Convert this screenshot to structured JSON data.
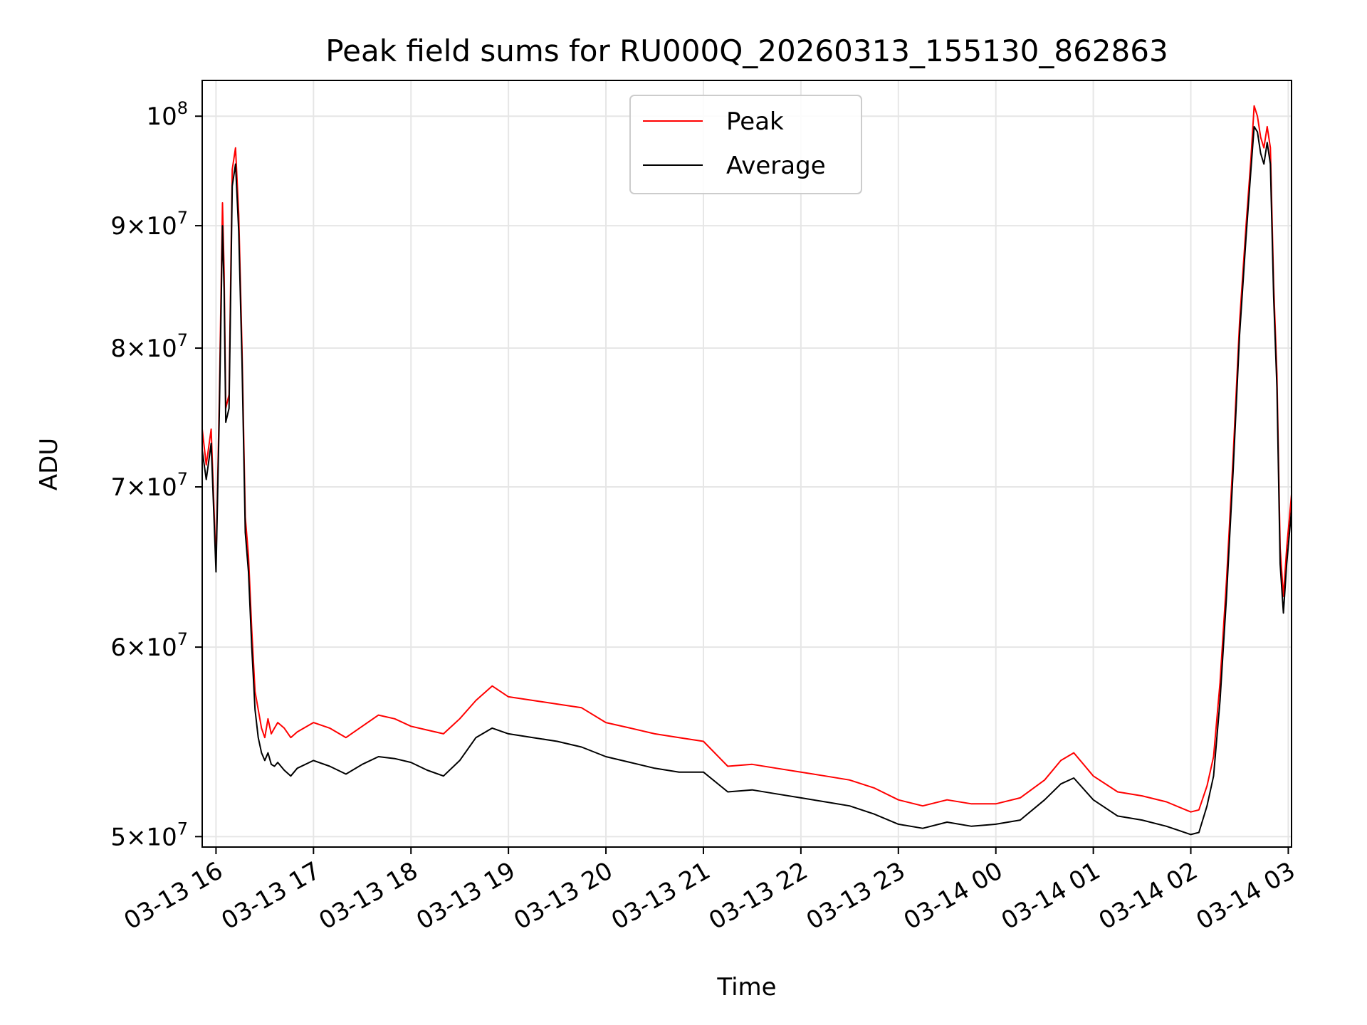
{
  "chart_data": {
    "type": "line",
    "title": "Peak field sums for RU000Q_20260313_155130_862863",
    "xlabel": "Time",
    "ylabel": "ADU",
    "x_type": "datetime",
    "xlim": [
      "2026-03-13T15:51:30",
      "2026-03-14T03:02:00"
    ],
    "ylim": [
      49500000,
      103500000
    ],
    "yscale": "log",
    "grid": true,
    "legend": "upper center",
    "x_ticks": [
      {
        "value": "2026-03-13T16:00",
        "label": "03-13 16"
      },
      {
        "value": "2026-03-13T17:00",
        "label": "03-13 17"
      },
      {
        "value": "2026-03-13T18:00",
        "label": "03-13 18"
      },
      {
        "value": "2026-03-13T19:00",
        "label": "03-13 19"
      },
      {
        "value": "2026-03-13T20:00",
        "label": "03-13 20"
      },
      {
        "value": "2026-03-13T21:00",
        "label": "03-13 21"
      },
      {
        "value": "2026-03-13T22:00",
        "label": "03-13 22"
      },
      {
        "value": "2026-03-13T23:00",
        "label": "03-13 23"
      },
      {
        "value": "2026-03-14T00:00",
        "label": "03-14 00"
      },
      {
        "value": "2026-03-14T01:00",
        "label": "03-14 01"
      },
      {
        "value": "2026-03-14T02:00",
        "label": "03-14 02"
      },
      {
        "value": "2026-03-14T03:00",
        "label": "03-14 03"
      }
    ],
    "y_ticks": [
      {
        "value": 50000000,
        "mantissa": "5",
        "exponent": "7"
      },
      {
        "value": 60000000,
        "mantissa": "6",
        "exponent": "7"
      },
      {
        "value": 70000000,
        "mantissa": "7",
        "exponent": "7"
      },
      {
        "value": 80000000,
        "mantissa": "8",
        "exponent": "7"
      },
      {
        "value": 90000000,
        "mantissa": "9",
        "exponent": "7"
      },
      {
        "value": 100000000,
        "mantissa": "",
        "exponent": "8"
      }
    ],
    "series": [
      {
        "name": "Peak",
        "color": "#ff0000",
        "x": [
          "2026-03-13T15:51:30",
          "2026-03-13T15:54",
          "2026-03-13T15:57",
          "2026-03-13T16:00",
          "2026-03-13T16:02",
          "2026-03-13T16:04",
          "2026-03-13T16:05",
          "2026-03-13T16:06",
          "2026-03-13T16:08",
          "2026-03-13T16:10",
          "2026-03-13T16:12",
          "2026-03-13T16:14",
          "2026-03-13T16:16",
          "2026-03-13T16:18",
          "2026-03-13T16:20",
          "2026-03-13T16:22",
          "2026-03-13T16:24",
          "2026-03-13T16:26",
          "2026-03-13T16:28",
          "2026-03-13T16:30",
          "2026-03-13T16:32",
          "2026-03-13T16:34",
          "2026-03-13T16:36",
          "2026-03-13T16:38",
          "2026-03-13T16:42",
          "2026-03-13T16:46",
          "2026-03-13T16:50",
          "2026-03-13T17:00",
          "2026-03-13T17:10",
          "2026-03-13T17:20",
          "2026-03-13T17:30",
          "2026-03-13T17:40",
          "2026-03-13T17:50",
          "2026-03-13T18:00",
          "2026-03-13T18:10",
          "2026-03-13T18:20",
          "2026-03-13T18:30",
          "2026-03-13T18:40",
          "2026-03-13T18:50",
          "2026-03-13T19:00",
          "2026-03-13T19:15",
          "2026-03-13T19:30",
          "2026-03-13T19:45",
          "2026-03-13T20:00",
          "2026-03-13T20:15",
          "2026-03-13T20:30",
          "2026-03-13T20:45",
          "2026-03-13T21:00",
          "2026-03-13T21:15",
          "2026-03-13T21:30",
          "2026-03-13T21:45",
          "2026-03-13T22:00",
          "2026-03-13T22:15",
          "2026-03-13T22:30",
          "2026-03-13T22:45",
          "2026-03-13T23:00",
          "2026-03-13T23:15",
          "2026-03-13T23:30",
          "2026-03-13T23:45",
          "2026-03-14T00:00",
          "2026-03-14T00:15",
          "2026-03-14T00:30",
          "2026-03-14T00:40",
          "2026-03-14T00:48",
          "2026-03-14T01:00",
          "2026-03-14T01:15",
          "2026-03-14T01:30",
          "2026-03-14T01:45",
          "2026-03-14T02:00",
          "2026-03-14T02:05",
          "2026-03-14T02:10",
          "2026-03-14T02:14",
          "2026-03-14T02:18",
          "2026-03-14T02:22",
          "2026-03-14T02:26",
          "2026-03-14T02:30",
          "2026-03-14T02:34",
          "2026-03-14T02:37",
          "2026-03-14T02:39",
          "2026-03-14T02:41",
          "2026-03-14T02:43",
          "2026-03-14T02:45",
          "2026-03-14T02:47",
          "2026-03-14T02:49",
          "2026-03-14T02:51",
          "2026-03-14T02:53",
          "2026-03-14T02:55",
          "2026-03-14T02:57",
          "2026-03-14T02:59",
          "2026-03-14T03:02"
        ],
        "y": [
          74000000,
          71500000,
          74000000,
          65000000,
          76000000,
          92000000,
          86000000,
          75500000,
          76500000,
          95000000,
          97000000,
          91000000,
          80000000,
          68000000,
          65500000,
          61000000,
          57500000,
          56500000,
          55500000,
          55000000,
          56000000,
          55200000,
          55500000,
          55800000,
          55500000,
          55000000,
          55300000,
          55800000,
          55500000,
          55000000,
          55600000,
          56200000,
          56000000,
          55600000,
          55400000,
          55200000,
          56000000,
          57000000,
          57800000,
          57200000,
          57000000,
          56800000,
          56600000,
          55800000,
          55500000,
          55200000,
          55000000,
          54800000,
          53500000,
          53600000,
          53400000,
          53200000,
          53000000,
          52800000,
          52400000,
          51800000,
          51500000,
          51800000,
          51600000,
          51600000,
          51900000,
          52800000,
          53800000,
          54200000,
          53000000,
          52200000,
          52000000,
          51700000,
          51200000,
          51300000,
          52500000,
          54000000,
          58000000,
          64000000,
          72000000,
          82000000,
          90000000,
          96000000,
          101000000,
          100000000,
          98000000,
          97000000,
          99000000,
          97000000,
          85000000,
          78000000,
          66000000,
          63000000,
          66000000,
          69500000
        ]
      },
      {
        "name": "Average",
        "color": "#000000",
        "x": [
          "2026-03-13T15:51:30",
          "2026-03-13T15:54",
          "2026-03-13T15:57",
          "2026-03-13T16:00",
          "2026-03-13T16:02",
          "2026-03-13T16:04",
          "2026-03-13T16:05",
          "2026-03-13T16:06",
          "2026-03-13T16:08",
          "2026-03-13T16:10",
          "2026-03-13T16:12",
          "2026-03-13T16:14",
          "2026-03-13T16:16",
          "2026-03-13T16:18",
          "2026-03-13T16:20",
          "2026-03-13T16:22",
          "2026-03-13T16:24",
          "2026-03-13T16:26",
          "2026-03-13T16:28",
          "2026-03-13T16:30",
          "2026-03-13T16:32",
          "2026-03-13T16:34",
          "2026-03-13T16:36",
          "2026-03-13T16:38",
          "2026-03-13T16:42",
          "2026-03-13T16:46",
          "2026-03-13T16:50",
          "2026-03-13T17:00",
          "2026-03-13T17:10",
          "2026-03-13T17:20",
          "2026-03-13T17:30",
          "2026-03-13T17:40",
          "2026-03-13T17:50",
          "2026-03-13T18:00",
          "2026-03-13T18:10",
          "2026-03-13T18:20",
          "2026-03-13T18:30",
          "2026-03-13T18:40",
          "2026-03-13T18:50",
          "2026-03-13T19:00",
          "2026-03-13T19:15",
          "2026-03-13T19:30",
          "2026-03-13T19:45",
          "2026-03-13T20:00",
          "2026-03-13T20:15",
          "2026-03-13T20:30",
          "2026-03-13T20:45",
          "2026-03-13T21:00",
          "2026-03-13T21:15",
          "2026-03-13T21:30",
          "2026-03-13T21:45",
          "2026-03-13T22:00",
          "2026-03-13T22:15",
          "2026-03-13T22:30",
          "2026-03-13T22:45",
          "2026-03-13T23:00",
          "2026-03-13T23:15",
          "2026-03-13T23:30",
          "2026-03-13T23:45",
          "2026-03-14T00:00",
          "2026-03-14T00:15",
          "2026-03-14T00:30",
          "2026-03-14T00:40",
          "2026-03-14T00:48",
          "2026-03-14T01:00",
          "2026-03-14T01:15",
          "2026-03-14T01:30",
          "2026-03-14T01:45",
          "2026-03-14T02:00",
          "2026-03-14T02:05",
          "2026-03-14T02:10",
          "2026-03-14T02:14",
          "2026-03-14T02:18",
          "2026-03-14T02:22",
          "2026-03-14T02:26",
          "2026-03-14T02:30",
          "2026-03-14T02:34",
          "2026-03-14T02:37",
          "2026-03-14T02:39",
          "2026-03-14T02:41",
          "2026-03-14T02:43",
          "2026-03-14T02:45",
          "2026-03-14T02:47",
          "2026-03-14T02:49",
          "2026-03-14T02:51",
          "2026-03-14T02:53",
          "2026-03-14T02:55",
          "2026-03-14T02:57",
          "2026-03-14T02:59",
          "2026-03-14T03:02"
        ],
        "y": [
          72500000,
          70500000,
          73000000,
          64500000,
          75000000,
          90000000,
          84500000,
          74500000,
          75500000,
          93500000,
          95500000,
          89500000,
          79000000,
          67000000,
          64500000,
          60000000,
          56500000,
          55000000,
          54200000,
          53800000,
          54200000,
          53600000,
          53500000,
          53700000,
          53300000,
          53000000,
          53400000,
          53800000,
          53500000,
          53100000,
          53600000,
          54000000,
          53900000,
          53700000,
          53300000,
          53000000,
          53800000,
          55000000,
          55500000,
          55200000,
          55000000,
          54800000,
          54500000,
          54000000,
          53700000,
          53400000,
          53200000,
          53200000,
          52200000,
          52300000,
          52100000,
          51900000,
          51700000,
          51500000,
          51100000,
          50600000,
          50400000,
          50700000,
          50500000,
          50600000,
          50800000,
          51800000,
          52600000,
          52900000,
          51800000,
          51000000,
          50800000,
          50500000,
          50100000,
          50200000,
          51500000,
          53000000,
          57000000,
          63000000,
          71000000,
          81000000,
          89000000,
          95000000,
          99000000,
          98500000,
          96500000,
          95500000,
          97500000,
          95500000,
          84000000,
          77000000,
          65000000,
          62000000,
          65000000,
          68500000
        ]
      }
    ]
  }
}
